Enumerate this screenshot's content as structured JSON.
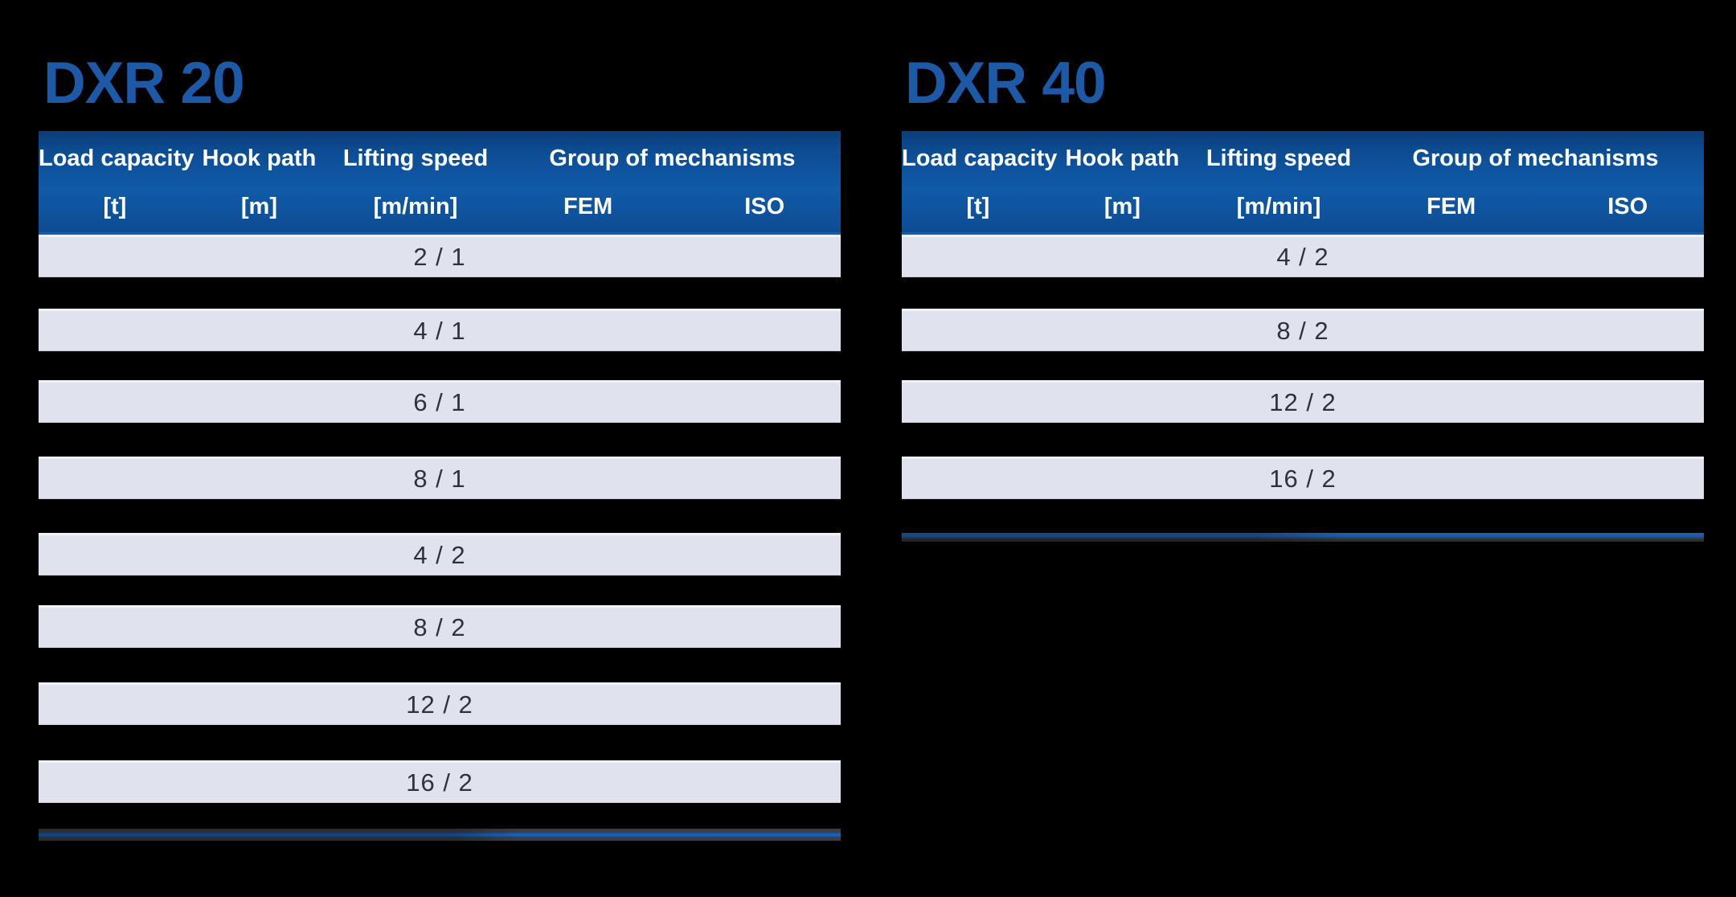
{
  "page": {
    "background": "#000000"
  },
  "colors": {
    "header_blue": "#0d4c93",
    "header_blue_light": "#105aa8",
    "header_bottom_edge": "#135fb4",
    "title_blue": "#1c5aa8",
    "row_background": "#e0e3ee",
    "row_top_edge": "#eff1f8",
    "row_text": "#2f3238",
    "endline_blue": "#1f66bb",
    "endline_gray": "#3b3e44"
  },
  "tables": [
    {
      "title": "DXR 20",
      "header": {
        "col_load": "Load capacity",
        "col_hook": "Hook path",
        "col_speed": "Lifting speed",
        "col_group": "Group of mechanisms",
        "unit_load": "[t]",
        "unit_hook": "[m]",
        "unit_speed": "[m/min]",
        "unit_fem": "FEM",
        "unit_iso": "ISO"
      },
      "rows": [
        {
          "lifting_speed": "2 / 1"
        },
        {
          "lifting_speed": "4 / 1"
        },
        {
          "lifting_speed": "6 / 1"
        },
        {
          "lifting_speed": "8 / 1"
        },
        {
          "lifting_speed": "4 / 2"
        },
        {
          "lifting_speed": "8 / 2"
        },
        {
          "lifting_speed": "12 / 2"
        },
        {
          "lifting_speed": "16 / 2"
        }
      ]
    },
    {
      "title": "DXR 40",
      "header": {
        "col_load": "Load capacity",
        "col_hook": "Hook path",
        "col_speed": "Lifting speed",
        "col_group": "Group of mechanisms",
        "unit_load": "[t]",
        "unit_hook": "[m]",
        "unit_speed": "[m/min]",
        "unit_fem": "FEM",
        "unit_iso": "ISO"
      },
      "rows": [
        {
          "lifting_speed": "4 / 2"
        },
        {
          "lifting_speed": "8 / 2"
        },
        {
          "lifting_speed": "12 / 2"
        },
        {
          "lifting_speed": "16 / 2"
        }
      ]
    }
  ]
}
